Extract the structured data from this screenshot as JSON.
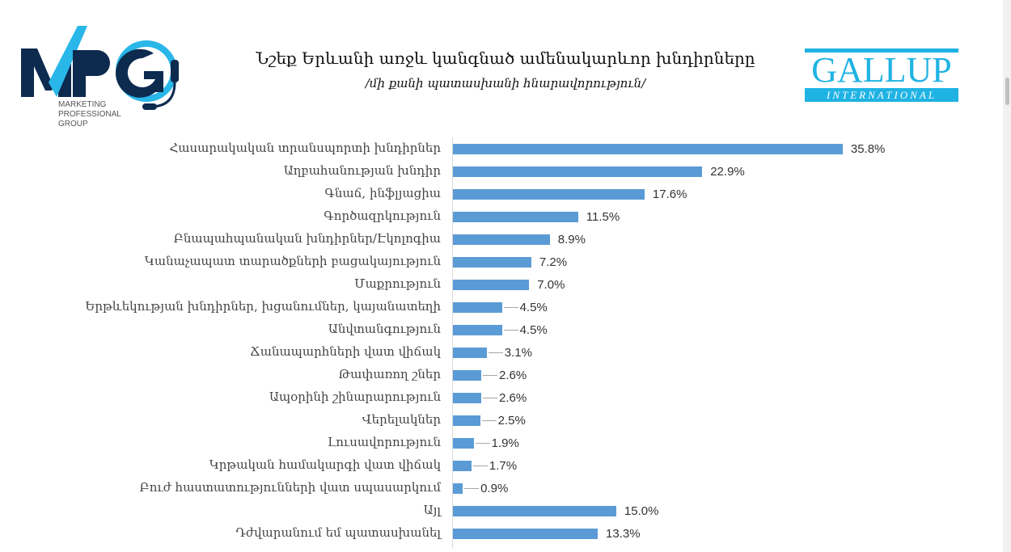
{
  "logos": {
    "mpg": {
      "letters": "MPG",
      "text": [
        "MARKETING",
        "PROFESSIONAL",
        "GROUP"
      ]
    },
    "gallup": {
      "name": "GALLUP",
      "sub": "INTERNATIONAL"
    }
  },
  "colors": {
    "bar": "#5b9bd5",
    "mpg_dark": "#0d2a4f",
    "mpg_light": "#29b6e8",
    "gallup": "#1fb3e3"
  },
  "chart_data": {
    "type": "bar",
    "orientation": "horizontal",
    "title": "Նշեք Երևանի առջև կանգնած ամենակարևոր խնդիրները",
    "subtitle": "/մի քանի պատասխանի հնարավորություն/",
    "xlabel": "",
    "ylabel": "",
    "unit": "%",
    "xlim": [
      0,
      40
    ],
    "grid": false,
    "legend": "none",
    "categories": [
      "Հասարակական տրանսպորտի խնդիրներ",
      "Աղբահանության խնդիր",
      "Գնաճ, ինֆլյացիա",
      "Գործազրկություն",
      "Բնապահպանական խնդիրներ/Էկոլոգիա",
      "Կանաչապատ տարածքների բացակայություն",
      "Մաքրություն",
      "Երթևեկության խնդիրներ, խցանումներ, կայանատեղի",
      "Անվտանգություն",
      "Ճանապարհների վատ վիճակ",
      "Թափառող շներ",
      "Ապօրինի շինարարություն",
      "Վերելակներ",
      "Լուսավորություն",
      "Կրթական համակարգի վատ վիճակ",
      "Բուժ հաստատությունների վատ սպասարկում",
      "Այլ",
      "Դժվարանում եմ պատասխանել"
    ],
    "values": [
      35.8,
      22.9,
      17.6,
      11.5,
      8.9,
      7.2,
      7.0,
      4.5,
      4.5,
      3.1,
      2.6,
      2.6,
      2.5,
      1.9,
      1.7,
      0.9,
      15.0,
      13.3
    ],
    "labels": [
      "35.8%",
      "22.9%",
      "17.6%",
      "11.5%",
      "8.9%",
      "7.2%",
      "7.0%",
      "4.5%",
      "4.5%",
      "3.1%",
      "2.6%",
      "2.6%",
      "2.5%",
      "1.9%",
      "1.7%",
      "0.9%",
      "15.0%",
      "13.3%"
    ]
  }
}
